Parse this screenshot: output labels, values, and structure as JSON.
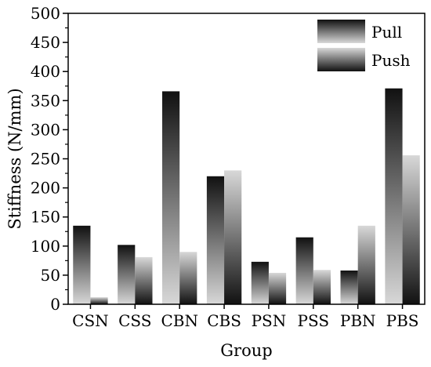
{
  "chart_data": {
    "type": "bar",
    "xlabel": "Group",
    "ylabel": "Stiffness (N/mm)",
    "categories": [
      "CSN",
      "CSS",
      "CBN",
      "CBS",
      "PSN",
      "PSS",
      "PBN",
      "PBS"
    ],
    "series": [
      {
        "name": "Pull",
        "values": [
          135,
          102,
          366,
          220,
          73,
          115,
          58,
          371
        ]
      },
      {
        "name": "Push",
        "values": [
          12,
          81,
          90,
          230,
          54,
          59,
          135,
          256
        ]
      }
    ],
    "ylim": [
      0,
      500
    ],
    "yticks": [
      "0",
      "50",
      "100",
      "150",
      "200",
      "250",
      "300",
      "350",
      "400",
      "450",
      "500"
    ],
    "grid": false,
    "legend_position": "top-right",
    "colors": {
      "pull_gradient": [
        "#111111",
        "#d8d8d8"
      ],
      "push_gradient": [
        "#d8d8d8",
        "#111111"
      ],
      "axis": "#000000"
    }
  }
}
